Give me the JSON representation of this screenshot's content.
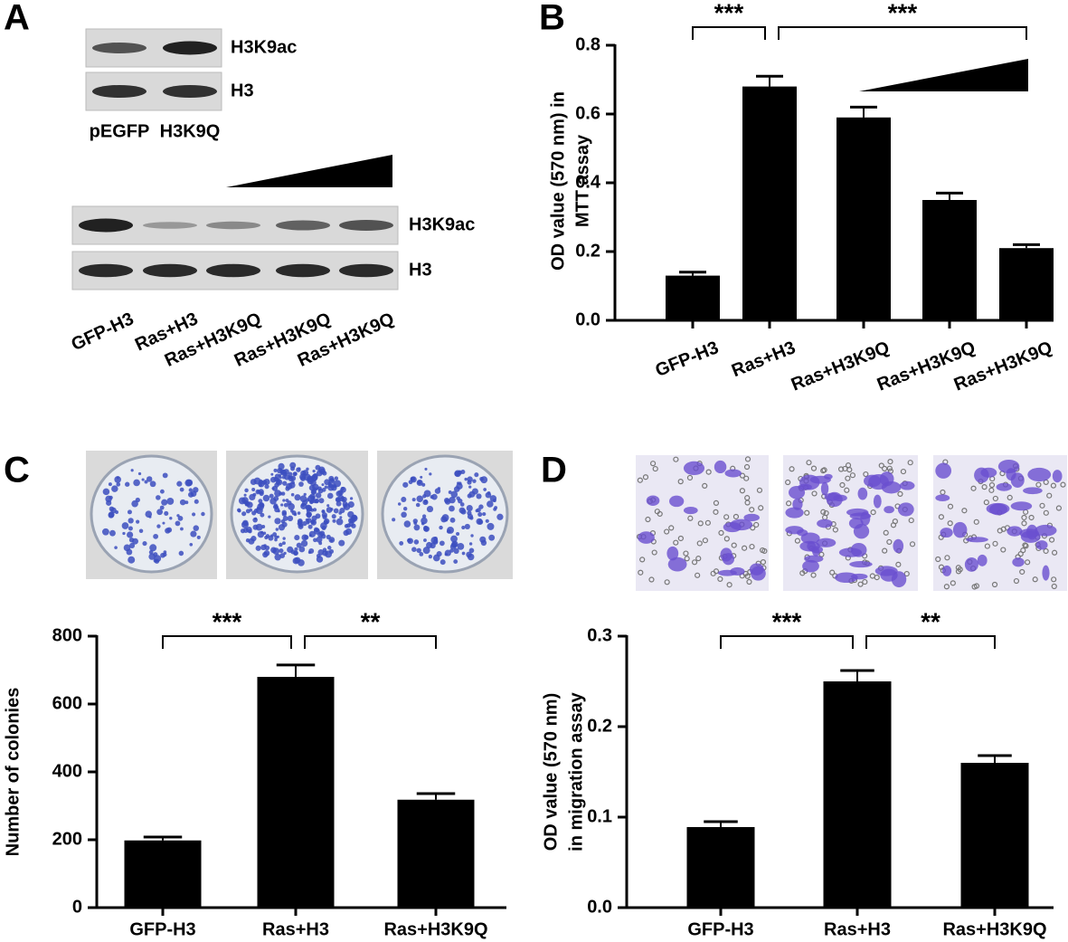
{
  "panel_labels": [
    "A",
    "B",
    "C",
    "D"
  ],
  "blot_top": {
    "rows": [
      "H3K9ac",
      "H3"
    ],
    "lanes": [
      "pEGFP",
      "H3K9Q"
    ]
  },
  "blot_bottom": {
    "rows": [
      "H3K9ac",
      "H3"
    ],
    "lanes": [
      "GFP-H3",
      "Ras+H3",
      "Ras+H3K9Q",
      "Ras+H3K9Q",
      "Ras+H3K9Q"
    ]
  },
  "chart_data": [
    {
      "type": "bar",
      "y_label": [
        "OD value (570 nm) in",
        "MTT assay"
      ],
      "categories": [
        "GFP-H3",
        "Ras+H3",
        "Ras+H3K9Q",
        "Ras+H3K9Q",
        "Ras+H3K9Q"
      ],
      "values": [
        0.13,
        0.68,
        0.59,
        0.35,
        0.21
      ],
      "errors": [
        0.01,
        0.03,
        0.03,
        0.02,
        0.01
      ],
      "color": "#000000",
      "ylim": [
        0,
        0.8
      ],
      "yticks": [
        {
          "value": 0,
          "label": "0.0"
        },
        0.2,
        0.4,
        0.6,
        0.8
      ],
      "significance": [
        "***",
        "***"
      ]
    },
    {
      "type": "bar",
      "y_label": [
        "Number of colonies"
      ],
      "categories": [
        "GFP-H3",
        "Ras+H3",
        "Ras+H3K9Q"
      ],
      "values": [
        198,
        680,
        318
      ],
      "errors": [
        10,
        35,
        18
      ],
      "color": "#000000",
      "ylim": [
        0,
        800
      ],
      "yticks": [
        0,
        200,
        400,
        600,
        800
      ],
      "significance": [
        "***",
        "**"
      ]
    },
    {
      "type": "bar",
      "y_label": [
        "OD value (570 nm)",
        "in migration assay"
      ],
      "categories": [
        "GFP-H3",
        "Ras+H3",
        "Ras+H3K9Q"
      ],
      "values": [
        0.089,
        0.25,
        0.16
      ],
      "errors": [
        0.006,
        0.012,
        0.008
      ],
      "color": "#000000",
      "ylim": [
        0,
        0.3
      ],
      "yticks": [
        {
          "value": 0,
          "label": "0.0"
        },
        0.1,
        0.2,
        0.3
      ],
      "significance": [
        "***",
        "**"
      ]
    }
  ]
}
